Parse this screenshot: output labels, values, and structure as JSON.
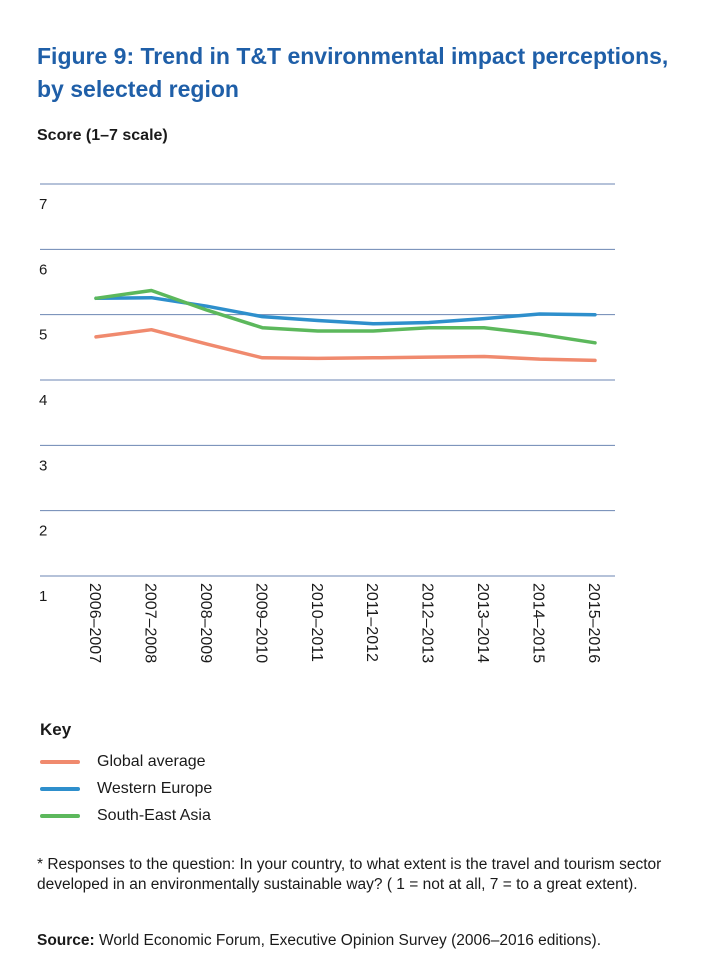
{
  "chart_data": {
    "type": "line",
    "title": "Figure 9: Trend in T&T environmental impact perceptions, by selected region",
    "ylabel": "Score (1–7 scale)",
    "ylim": [
      1,
      7
    ],
    "yticks": [
      "1",
      "2",
      "3",
      "4",
      "5",
      "6",
      "7"
    ],
    "categories": [
      "2006–2007",
      "2007–2008",
      "2008–2009",
      "2009–2010",
      "2010–2011",
      "2011–2012",
      "2012–2013",
      "2013–2014",
      "2014–2015",
      "2015–2016"
    ],
    "grid": true,
    "legend_title": "Key",
    "legend_position": "bottom-left",
    "series": [
      {
        "name": "Global average",
        "color": "#f08a6e",
        "values": [
          4.66,
          4.77,
          4.55,
          4.34,
          4.33,
          4.34,
          4.35,
          4.36,
          4.32,
          4.3
        ]
      },
      {
        "name": "Western Europe",
        "color": "#2e8fcc",
        "values": [
          5.25,
          5.26,
          5.13,
          4.97,
          4.91,
          4.86,
          4.88,
          4.94,
          5.01,
          5.0
        ]
      },
      {
        "name": "South-East Asia",
        "color": "#5cb85c",
        "values": [
          5.25,
          5.37,
          5.07,
          4.8,
          4.75,
          4.75,
          4.8,
          4.8,
          4.7,
          4.57
        ]
      }
    ]
  },
  "footnote": "* Responses to the question: In your country, to what extent is the travel and tourism sector developed in an environmentally sustainable way? ( 1 = not at all, 7 = to a great extent).",
  "source_label": "Source:",
  "source_text": " World Economic Forum, Executive Opinion Survey (2006–2016 editions)."
}
